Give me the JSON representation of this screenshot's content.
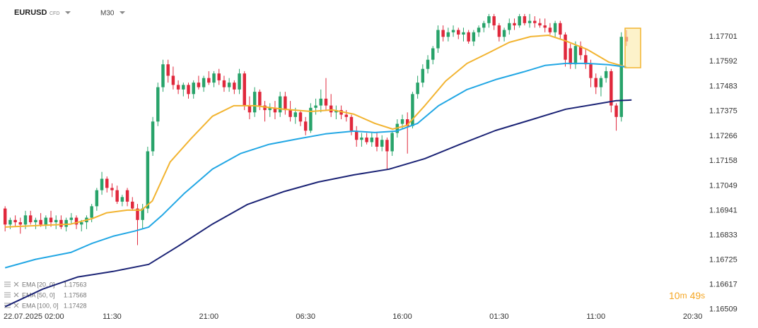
{
  "header": {
    "symbol": "EURUSD",
    "instrument_type": "CFD",
    "timeframe": "M30"
  },
  "chart_data": {
    "type": "candlestick",
    "open": [
      1.1695,
      1.1688,
      1.169,
      1.1689,
      1.1688,
      1.1692,
      1.1689,
      1.169,
      1.1688,
      1.1691,
      1.1689,
      1.169,
      1.1687,
      1.169,
      1.1691,
      1.1688,
      1.1689,
      1.1691,
      1.1696,
      1.1703,
      1.1708,
      1.1704,
      1.1703,
      1.1698,
      1.1703,
      1.1698,
      1.1695,
      1.169,
      1.1695,
      1.172,
      1.1733,
      1.1748,
      1.1758,
      1.1753,
      1.1749,
      1.1747,
      1.1749,
      1.1745,
      1.175,
      1.1748,
      1.1752,
      1.175,
      1.1754,
      1.1751,
      1.1748,
      1.175,
      1.1747,
      1.1754,
      1.174,
      1.1737,
      1.1746,
      1.174,
      1.1738,
      1.1739,
      1.1737,
      1.1744,
      1.1738,
      1.1735,
      1.1737,
      1.1733,
      1.1729,
      1.1739,
      1.174,
      1.1743,
      1.174,
      1.1737,
      1.1738,
      1.1736,
      1.1735,
      1.1729,
      1.1725,
      1.1726,
      1.1724,
      1.1726,
      1.1722,
      1.1725,
      1.172,
      1.1728,
      1.1732,
      1.1734,
      1.1731,
      1.1745,
      1.175,
      1.1756,
      1.176,
      1.1765,
      1.1773,
      1.177,
      1.1772,
      1.1773,
      1.1771,
      1.1772,
      1.1768,
      1.1772,
      1.1774,
      1.1776,
      1.1779,
      1.1775,
      1.177,
      1.1773,
      1.1776,
      1.1775,
      1.1779,
      1.1776,
      1.1777,
      1.1776,
      1.1775,
      1.1774,
      1.1772,
      1.1776,
      1.1771,
      1.1765,
      1.1758,
      1.1766,
      1.1762,
      1.1758,
      1.1752,
      1.1748,
      1.1752,
      1.1755,
      1.174,
      1.1735,
      1.177
    ],
    "high": [
      1.1696,
      1.1691,
      1.1692,
      1.1691,
      1.1694,
      1.1694,
      1.1691,
      1.1693,
      1.1692,
      1.1694,
      1.1692,
      1.1692,
      1.1691,
      1.1693,
      1.1692,
      1.169,
      1.1692,
      1.1697,
      1.1704,
      1.1711,
      1.1709,
      1.1706,
      1.1705,
      1.1701,
      1.1704,
      1.17,
      1.1697,
      1.1697,
      1.1722,
      1.1735,
      1.175,
      1.176,
      1.176,
      1.1757,
      1.1751,
      1.175,
      1.175,
      1.1751,
      1.1753,
      1.1753,
      1.1755,
      1.1755,
      1.1756,
      1.1753,
      1.1752,
      1.1751,
      1.1756,
      1.1755,
      1.1744,
      1.1748,
      1.1747,
      1.1742,
      1.1741,
      1.1742,
      1.1746,
      1.1746,
      1.1742,
      1.1739,
      1.1738,
      1.1735,
      1.1741,
      1.1743,
      1.1747,
      1.1752,
      1.1745,
      1.174,
      1.174,
      1.1738,
      1.1736,
      1.1731,
      1.1728,
      1.1728,
      1.1728,
      1.1728,
      1.1727,
      1.1726,
      1.1729,
      1.1734,
      1.1736,
      1.1737,
      1.1746,
      1.1753,
      1.1758,
      1.1762,
      1.1766,
      1.1775,
      1.1775,
      1.1774,
      1.1775,
      1.1774,
      1.1774,
      1.1773,
      1.1773,
      1.1775,
      1.1777,
      1.178,
      1.178,
      1.1776,
      1.1774,
      1.1778,
      1.1778,
      1.178,
      1.178,
      1.178,
      1.1779,
      1.1778,
      1.1778,
      1.1776,
      1.1777,
      1.1777,
      1.1772,
      1.1767,
      1.1768,
      1.1768,
      1.1765,
      1.176,
      1.1754,
      1.1753,
      1.1757,
      1.1756,
      1.1741,
      1.1772,
      1.1773
    ],
    "low": [
      1.1685,
      1.1686,
      1.1687,
      1.1684,
      1.1686,
      1.1688,
      1.1686,
      1.1687,
      1.1686,
      1.1687,
      1.1686,
      1.1686,
      1.1685,
      1.1688,
      1.1686,
      1.1685,
      1.1686,
      1.1689,
      1.1694,
      1.1701,
      1.1702,
      1.17,
      1.1697,
      1.1696,
      1.1696,
      1.1694,
      1.1679,
      1.1686,
      1.1693,
      1.1718,
      1.1731,
      1.1746,
      1.175,
      1.1747,
      1.1745,
      1.1744,
      1.1743,
      1.1743,
      1.1747,
      1.1746,
      1.1749,
      1.1748,
      1.1749,
      1.1746,
      1.1746,
      1.1745,
      1.1745,
      1.1738,
      1.1734,
      1.1735,
      1.1738,
      1.1733,
      1.1735,
      1.1734,
      1.1735,
      1.1736,
      1.1733,
      1.1732,
      1.1731,
      1.1727,
      1.1728,
      1.1736,
      1.1737,
      1.1738,
      1.1735,
      1.1734,
      1.1734,
      1.1733,
      1.1727,
      1.1722,
      1.1722,
      1.1723,
      1.1722,
      1.172,
      1.172,
      1.1712,
      1.1718,
      1.1726,
      1.173,
      1.1719,
      1.173,
      1.1743,
      1.1748,
      1.1754,
      1.1758,
      1.1763,
      1.1768,
      1.1768,
      1.177,
      1.1769,
      1.1768,
      1.1767,
      1.1766,
      1.177,
      1.1772,
      1.1774,
      1.1773,
      1.1768,
      1.1768,
      1.1771,
      1.1773,
      1.1774,
      1.1775,
      1.1774,
      1.1774,
      1.1774,
      1.1772,
      1.1771,
      1.177,
      1.1769,
      1.1757,
      1.1756,
      1.1756,
      1.176,
      1.1756,
      1.1748,
      1.1745,
      1.1744,
      1.175,
      1.1737,
      1.1729,
      1.1733,
      1.1766
    ],
    "close": [
      1.1688,
      1.169,
      1.1689,
      1.1688,
      1.1692,
      1.1689,
      1.169,
      1.1688,
      1.1691,
      1.1689,
      1.169,
      1.1687,
      1.169,
      1.1691,
      1.1688,
      1.1689,
      1.1691,
      1.1696,
      1.1703,
      1.1708,
      1.1704,
      1.1703,
      1.1698,
      1.17,
      1.1698,
      1.1695,
      1.169,
      1.1695,
      1.172,
      1.1733,
      1.1748,
      1.1758,
      1.1753,
      1.1749,
      1.1747,
      1.1749,
      1.1745,
      1.175,
      1.1748,
      1.1752,
      1.175,
      1.1754,
      1.1751,
      1.1748,
      1.175,
      1.1747,
      1.1754,
      1.174,
      1.1737,
      1.1746,
      1.174,
      1.1738,
      1.1739,
      1.1737,
      1.1744,
      1.1738,
      1.1735,
      1.1737,
      1.1733,
      1.1729,
      1.1739,
      1.174,
      1.1743,
      1.174,
      1.1737,
      1.1738,
      1.1736,
      1.1735,
      1.1729,
      1.1725,
      1.1726,
      1.1724,
      1.1726,
      1.1722,
      1.1725,
      1.172,
      1.1728,
      1.1732,
      1.1734,
      1.1731,
      1.1745,
      1.175,
      1.1756,
      1.176,
      1.1765,
      1.1773,
      1.177,
      1.1772,
      1.1773,
      1.1771,
      1.1772,
      1.1768,
      1.1772,
      1.1774,
      1.1776,
      1.1779,
      1.1775,
      1.177,
      1.1773,
      1.1776,
      1.1775,
      1.1779,
      1.1776,
      1.1777,
      1.1776,
      1.1775,
      1.1774,
      1.1772,
      1.1776,
      1.1771,
      1.176,
      1.1758,
      1.1766,
      1.1762,
      1.1758,
      1.1752,
      1.1748,
      1.1752,
      1.1755,
      1.174,
      1.1735,
      1.177,
      1.1768
    ],
    "colors": {
      "up": "#28a36a",
      "down": "#e0283c"
    },
    "xlim": [
      -1,
      137
    ],
    "xticks": [
      {
        "value": 2,
        "label": "22.07.2025 02:00"
      },
      {
        "value": 21,
        "label": "11:30"
      },
      {
        "value": 40,
        "label": "21:00"
      },
      {
        "value": 59,
        "label": "06:30"
      },
      {
        "value": 78,
        "label": "16:00"
      },
      {
        "value": 97,
        "label": "01:30"
      },
      {
        "value": 116,
        "label": "11:00"
      },
      {
        "value": 135,
        "label": "20:30"
      }
    ],
    "ylim": [
      1.16468,
      1.17861
    ],
    "yticks": [
      1.16509,
      1.16617,
      1.16725,
      1.16833,
      1.16941,
      1.17049,
      1.17158,
      1.17266,
      1.17375,
      1.17483,
      1.17592,
      1.17701
    ],
    "grid": false,
    "series": [
      {
        "name": "EMA [20, 0]",
        "legend_value": 1.17563,
        "color": "#f2b431",
        "x": [
          0,
          6.0,
          12.9,
          17.1,
          19.9,
          24.0,
          26.8,
          28.9,
          32.4,
          36.5,
          40.7,
          44.9,
          49.0,
          54.6,
          60.1,
          64.3,
          68.5,
          72.6,
          76.1,
          78.9,
          82.4,
          86.5,
          90.7,
          94.9,
          99.0,
          103.2,
          106.7,
          110.1,
          114.3,
          118.5,
          122
        ],
        "values": [
          1.16869,
          1.16875,
          1.16882,
          1.16906,
          1.16931,
          1.16943,
          1.16943,
          1.16983,
          1.17153,
          1.17255,
          1.17353,
          1.17399,
          1.17399,
          1.17384,
          1.17374,
          1.17381,
          1.17362,
          1.17322,
          1.17297,
          1.17313,
          1.17399,
          1.17507,
          1.17584,
          1.1763,
          1.17676,
          1.17701,
          1.17707,
          1.17682,
          1.17645,
          1.1759,
          1.17568
        ]
      },
      {
        "name": "EMA [50, 0]",
        "legend_value": 1.17568,
        "color": "#22a7e4",
        "x": [
          0,
          6.0,
          12.9,
          17.1,
          21.2,
          25.4,
          28.2,
          30.9,
          35.1,
          40.7,
          46.2,
          51.8,
          57.4,
          62.9,
          68.5,
          72.6,
          76.8,
          81.0,
          85.1,
          90.7,
          96.3,
          101.8,
          106.0,
          110.1,
          114.3,
          118.5,
          122
        ],
        "values": [
          1.16691,
          1.16728,
          1.16758,
          1.16798,
          1.16829,
          1.16851,
          1.16869,
          1.16922,
          1.17014,
          1.17122,
          1.1719,
          1.1723,
          1.17254,
          1.17276,
          1.17288,
          1.17282,
          1.17288,
          1.17322,
          1.17399,
          1.1747,
          1.17513,
          1.17547,
          1.17575,
          1.17584,
          1.17584,
          1.17578,
          1.17568
        ]
      },
      {
        "name": "EMA [100, 0]",
        "legend_value": 1.17428,
        "color": "#1b2375",
        "x": [
          0,
          7.4,
          14.3,
          21.2,
          28.2,
          33.8,
          40.7,
          47.6,
          54.6,
          61.5,
          68.5,
          75.4,
          82.4,
          89.3,
          96.3,
          103.2,
          110.1,
          115.7,
          119.9,
          123
        ],
        "values": [
          1.16521,
          1.16598,
          1.16651,
          1.16675,
          1.16706,
          1.16783,
          1.16882,
          1.16968,
          1.17023,
          1.17066,
          1.17097,
          1.17122,
          1.17168,
          1.1723,
          1.17291,
          1.17337,
          1.17384,
          1.17405,
          1.17421,
          1.17424
        ]
      }
    ]
  },
  "countdown": {
    "minutes": "10",
    "minutes_unit": "m",
    "seconds": "49",
    "seconds_unit": "s"
  }
}
